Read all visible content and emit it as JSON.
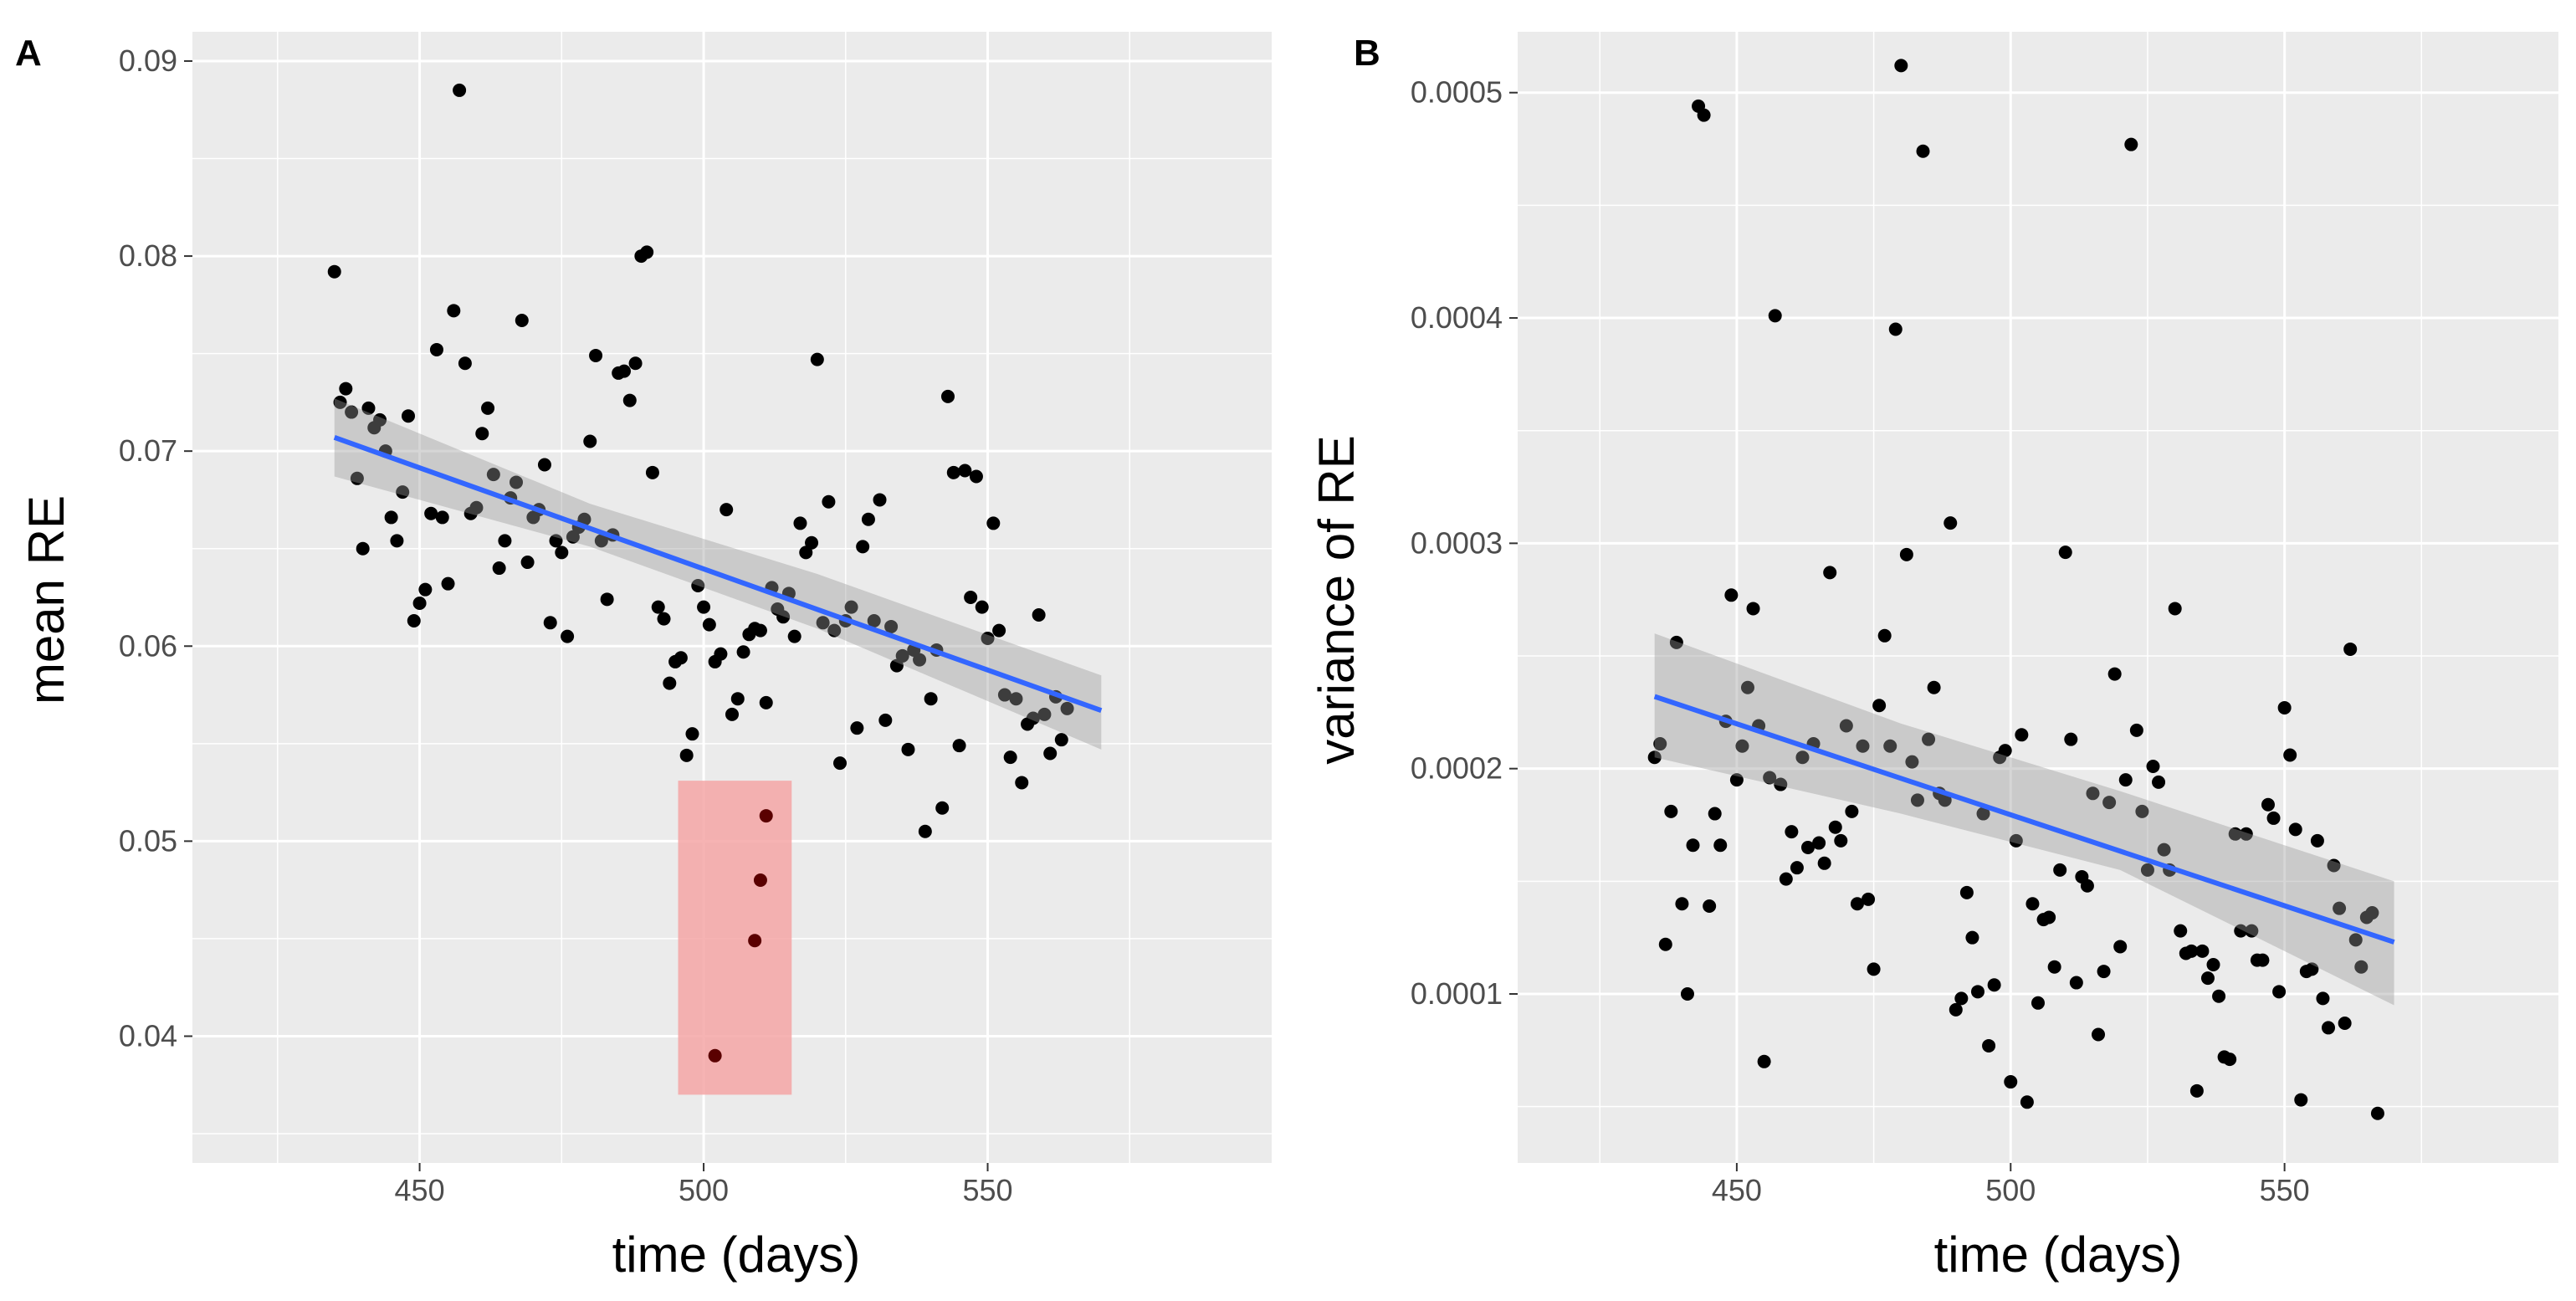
{
  "chart_data": [
    {
      "panel": "A",
      "type": "scatter",
      "xlabel": "time (days)",
      "ylabel": "mean RE",
      "xlim": [
        410,
        600
      ],
      "ylim": [
        0.0335,
        0.0915
      ],
      "xticks": [
        450,
        500,
        550
      ],
      "yticks": [
        0.04,
        0.05,
        0.06,
        0.07,
        0.08,
        0.09
      ],
      "ytick_labels": [
        "0.04",
        "0.05",
        "0.06",
        "0.07",
        "0.08",
        "0.09"
      ],
      "xtick_labels": [
        "450",
        "500",
        "550"
      ],
      "colors": {
        "panel": "#ebebeb",
        "grid": "#ffffff",
        "point": "#000000",
        "trend": "#3366ff",
        "ribbon": "#999999",
        "highlight": "#f4a6a6",
        "highlight_point": "#5a0000"
      },
      "trend": {
        "x": [
          435,
          570
        ],
        "y": [
          0.0707,
          0.0567
        ]
      },
      "ribbon": {
        "x": [
          435,
          480,
          520,
          570
        ],
        "upper": [
          0.0727,
          0.0673,
          0.0637,
          0.0585
        ],
        "lower": [
          0.0687,
          0.0651,
          0.0609,
          0.0547
        ]
      },
      "highlight_region": {
        "x": [
          495.5,
          515.5
        ],
        "y": [
          0.037,
          0.0531
        ]
      },
      "highlight_points": [
        [
          502,
          0.039
        ],
        [
          509,
          0.0449
        ],
        [
          510,
          0.048
        ],
        [
          511,
          0.0513
        ]
      ],
      "points": [
        [
          435,
          0.0792
        ],
        [
          436,
          0.0725
        ],
        [
          437,
          0.0732
        ],
        [
          438,
          0.072
        ],
        [
          439,
          0.0686
        ],
        [
          440,
          0.065
        ],
        [
          441,
          0.0722
        ],
        [
          442,
          0.0712
        ],
        [
          443,
          0.0716
        ],
        [
          444,
          0.07
        ],
        [
          445,
          0.0666
        ],
        [
          446,
          0.0654
        ],
        [
          447,
          0.0679
        ],
        [
          448,
          0.0718
        ],
        [
          449,
          0.0613
        ],
        [
          450,
          0.0622
        ],
        [
          451,
          0.0629
        ],
        [
          452,
          0.0668
        ],
        [
          453,
          0.0752
        ],
        [
          454,
          0.0666
        ],
        [
          455,
          0.0632
        ],
        [
          456,
          0.0772
        ],
        [
          457,
          0.0885
        ],
        [
          458,
          0.0745
        ],
        [
          459,
          0.0668
        ],
        [
          460,
          0.0671
        ],
        [
          461,
          0.0709
        ],
        [
          462,
          0.0722
        ],
        [
          463,
          0.0688
        ],
        [
          464,
          0.064
        ],
        [
          465,
          0.0654
        ],
        [
          466,
          0.0676
        ],
        [
          467,
          0.0684
        ],
        [
          468,
          0.0767
        ],
        [
          469,
          0.0643
        ],
        [
          470,
          0.0666
        ],
        [
          471,
          0.067
        ],
        [
          472,
          0.0693
        ],
        [
          473,
          0.0612
        ],
        [
          474,
          0.0654
        ],
        [
          475,
          0.0648
        ],
        [
          476,
          0.0605
        ],
        [
          477,
          0.0656
        ],
        [
          478,
          0.0661
        ],
        [
          479,
          0.0665
        ],
        [
          480,
          0.0705
        ],
        [
          481,
          0.0749
        ],
        [
          482,
          0.0654
        ],
        [
          483,
          0.0624
        ],
        [
          484,
          0.0657
        ],
        [
          485,
          0.074
        ],
        [
          486,
          0.0741
        ],
        [
          487,
          0.0726
        ],
        [
          488,
          0.0745
        ],
        [
          489,
          0.08
        ],
        [
          490,
          0.0802
        ],
        [
          491,
          0.0689
        ],
        [
          492,
          0.062
        ],
        [
          493,
          0.0614
        ],
        [
          494,
          0.0581
        ],
        [
          495,
          0.0592
        ],
        [
          496,
          0.0594
        ],
        [
          497,
          0.0544
        ],
        [
          498,
          0.0555
        ],
        [
          499,
          0.0631
        ],
        [
          500,
          0.062
        ],
        [
          501,
          0.0611
        ],
        [
          502,
          0.0592
        ],
        [
          503,
          0.0596
        ],
        [
          504,
          0.067
        ],
        [
          505,
          0.0565
        ],
        [
          506,
          0.0573
        ],
        [
          507,
          0.0597
        ],
        [
          508,
          0.0606
        ],
        [
          509,
          0.0609
        ],
        [
          510,
          0.0608
        ],
        [
          511,
          0.0571
        ],
        [
          512,
          0.063
        ],
        [
          513,
          0.0619
        ],
        [
          514,
          0.0615
        ],
        [
          515,
          0.0627
        ],
        [
          516,
          0.0605
        ],
        [
          517,
          0.0663
        ],
        [
          518,
          0.0648
        ],
        [
          519,
          0.0653
        ],
        [
          520,
          0.0747
        ],
        [
          521,
          0.0612
        ],
        [
          522,
          0.0674
        ],
        [
          523,
          0.0608
        ],
        [
          524,
          0.054
        ],
        [
          525,
          0.0613
        ],
        [
          526,
          0.062
        ],
        [
          527,
          0.0558
        ],
        [
          528,
          0.0651
        ],
        [
          529,
          0.0665
        ],
        [
          530,
          0.0613
        ],
        [
          531,
          0.0675
        ],
        [
          532,
          0.0562
        ],
        [
          533,
          0.061
        ],
        [
          534,
          0.059
        ],
        [
          535,
          0.0595
        ],
        [
          536,
          0.0547
        ],
        [
          537,
          0.0598
        ],
        [
          538,
          0.0593
        ],
        [
          539,
          0.0505
        ],
        [
          540,
          0.0573
        ],
        [
          541,
          0.0598
        ],
        [
          542,
          0.0517
        ],
        [
          543,
          0.0728
        ],
        [
          544,
          0.0689
        ],
        [
          545,
          0.0549
        ],
        [
          546,
          0.069
        ],
        [
          547,
          0.0625
        ],
        [
          548,
          0.0687
        ],
        [
          549,
          0.062
        ],
        [
          550,
          0.0604
        ],
        [
          551,
          0.0663
        ],
        [
          552,
          0.0608
        ],
        [
          553,
          0.0575
        ],
        [
          554,
          0.0543
        ],
        [
          555,
          0.0573
        ],
        [
          556,
          0.053
        ],
        [
          557,
          0.056
        ],
        [
          558,
          0.0563
        ],
        [
          559,
          0.0616
        ],
        [
          560,
          0.0565
        ],
        [
          561,
          0.0545
        ],
        [
          562,
          0.0574
        ],
        [
          563,
          0.0552
        ],
        [
          564,
          0.0568
        ]
      ]
    },
    {
      "panel": "B",
      "type": "scatter",
      "xlabel": "time (days)",
      "ylabel": "variance of RE",
      "xlim": [
        410,
        600
      ],
      "ylim": [
        2.5e-05,
        0.000527
      ],
      "xticks": [
        450,
        500,
        550
      ],
      "yticks": [
        0.0001,
        0.0002,
        0.0003,
        0.0004,
        0.0005
      ],
      "ytick_labels": [
        "0.0001",
        "0.0002",
        "0.0003",
        "0.0004",
        "0.0005"
      ],
      "xtick_labels": [
        "450",
        "500",
        "550"
      ],
      "colors": {
        "panel": "#ebebeb",
        "grid": "#ffffff",
        "point": "#000000",
        "trend": "#3366ff",
        "ribbon": "#999999"
      },
      "trend": {
        "x": [
          435,
          570
        ],
        "y": [
          0.000232,
          0.000123
        ]
      },
      "ribbon": {
        "x": [
          435,
          480,
          520,
          570
        ],
        "upper": [
          0.00026,
          0.00022,
          0.00019,
          0.00015
        ],
        "lower": [
          0.000205,
          0.00018,
          0.000155,
          9.5e-05
        ]
      },
      "points": [
        [
          435,
          0.000205
        ],
        [
          436,
          0.000211
        ],
        [
          437,
          0.000122
        ],
        [
          438,
          0.000181
        ],
        [
          439,
          0.000256
        ],
        [
          440,
          0.00014
        ],
        [
          441,
          0.0001
        ],
        [
          442,
          0.000166
        ],
        [
          443,
          0.000494
        ],
        [
          444,
          0.00049
        ],
        [
          445,
          0.000139
        ],
        [
          446,
          0.00018
        ],
        [
          447,
          0.000166
        ],
        [
          448,
          0.000221
        ],
        [
          449,
          0.000277
        ],
        [
          450,
          0.000195
        ],
        [
          451,
          0.00021
        ],
        [
          452,
          0.000236
        ],
        [
          453,
          0.000271
        ],
        [
          454,
          0.000219
        ],
        [
          455,
          7e-05
        ],
        [
          456,
          0.000196
        ],
        [
          457,
          0.000401
        ],
        [
          458,
          0.000193
        ],
        [
          459,
          0.000151
        ],
        [
          460,
          0.000172
        ],
        [
          461,
          0.000156
        ],
        [
          462,
          0.000205
        ],
        [
          463,
          0.000165
        ],
        [
          464,
          0.000211
        ],
        [
          465,
          0.000167
        ],
        [
          466,
          0.000158
        ],
        [
          467,
          0.000287
        ],
        [
          468,
          0.000174
        ],
        [
          469,
          0.000168
        ],
        [
          470,
          0.000219
        ],
        [
          471,
          0.000181
        ],
        [
          472,
          0.00014
        ],
        [
          473,
          0.00021
        ],
        [
          474,
          0.000142
        ],
        [
          475,
          0.000111
        ],
        [
          476,
          0.000228
        ],
        [
          477,
          0.000259
        ],
        [
          478,
          0.00021
        ],
        [
          479,
          0.000395
        ],
        [
          480,
          0.000512
        ],
        [
          481,
          0.000295
        ],
        [
          482,
          0.000203
        ],
        [
          483,
          0.000186
        ],
        [
          484,
          0.000474
        ],
        [
          485,
          0.000213
        ],
        [
          486,
          0.000236
        ],
        [
          487,
          0.000189
        ],
        [
          488,
          0.000186
        ],
        [
          489,
          0.000309
        ],
        [
          490,
          9.3e-05
        ],
        [
          491,
          9.8e-05
        ],
        [
          492,
          0.000145
        ],
        [
          493,
          0.000125
        ],
        [
          494,
          0.000101
        ],
        [
          495,
          0.00018
        ],
        [
          496,
          7.7e-05
        ],
        [
          497,
          0.000104
        ],
        [
          498,
          0.000205
        ],
        [
          499,
          0.000208
        ],
        [
          500,
          6.1e-05
        ],
        [
          501,
          0.000168
        ],
        [
          502,
          0.000215
        ],
        [
          503,
          5.2e-05
        ],
        [
          504,
          0.00014
        ],
        [
          505,
          9.6e-05
        ],
        [
          506,
          0.000133
        ],
        [
          507,
          0.000134
        ],
        [
          508,
          0.000112
        ],
        [
          509,
          0.000155
        ],
        [
          510,
          0.000296
        ],
        [
          511,
          0.000213
        ],
        [
          512,
          0.000105
        ],
        [
          513,
          0.000152
        ],
        [
          514,
          0.000148
        ],
        [
          515,
          0.000189
        ],
        [
          516,
          8.2e-05
        ],
        [
          517,
          0.00011
        ],
        [
          518,
          0.000185
        ],
        [
          519,
          0.000242
        ],
        [
          520,
          0.000121
        ],
        [
          521,
          0.000195
        ],
        [
          522,
          0.000477
        ],
        [
          523,
          0.000217
        ],
        [
          524,
          0.000181
        ],
        [
          525,
          0.000155
        ],
        [
          526,
          0.000201
        ],
        [
          527,
          0.000194
        ],
        [
          528,
          0.000164
        ],
        [
          529,
          0.000155
        ],
        [
          530,
          0.000271
        ],
        [
          531,
          0.000128
        ],
        [
          532,
          0.000118
        ],
        [
          533,
          0.000119
        ],
        [
          534,
          5.7e-05
        ],
        [
          535,
          0.000119
        ],
        [
          536,
          0.000107
        ],
        [
          537,
          0.000113
        ],
        [
          538,
          9.9e-05
        ],
        [
          539,
          7.2e-05
        ],
        [
          540,
          7.1e-05
        ],
        [
          541,
          0.000171
        ],
        [
          542,
          0.000128
        ],
        [
          543,
          0.000171
        ],
        [
          544,
          0.000128
        ],
        [
          545,
          0.000115
        ],
        [
          546,
          0.000115
        ],
        [
          547,
          0.000184
        ],
        [
          548,
          0.000178
        ],
        [
          549,
          0.000101
        ],
        [
          550,
          0.000227
        ],
        [
          551,
          0.000206
        ],
        [
          552,
          0.000173
        ],
        [
          553,
          5.3e-05
        ],
        [
          554,
          0.00011
        ],
        [
          555,
          0.000111
        ],
        [
          556,
          0.000168
        ],
        [
          557,
          9.8e-05
        ],
        [
          558,
          8.5e-05
        ],
        [
          559,
          0.000157
        ],
        [
          560,
          0.000138
        ],
        [
          561,
          8.7e-05
        ],
        [
          562,
          0.000253
        ],
        [
          563,
          0.000124
        ],
        [
          564,
          0.000112
        ],
        [
          565,
          0.000134
        ],
        [
          566,
          0.000136
        ],
        [
          567,
          4.7e-05
        ]
      ]
    }
  ]
}
